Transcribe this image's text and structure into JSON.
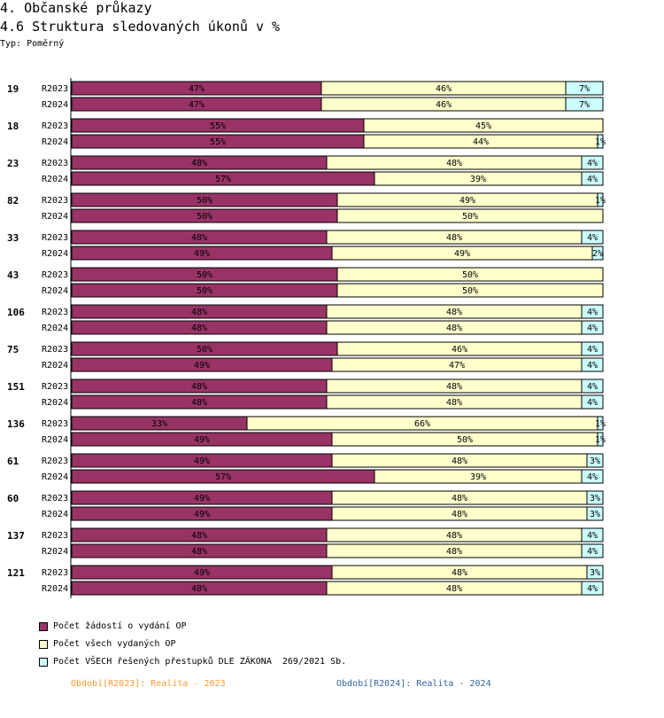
{
  "header": {
    "title": "4. Občanské průkazy",
    "subtitle": "4.6 Struktura sledovaných úkonů v %",
    "type_label": "Typ: Poměrný"
  },
  "chart_data": {
    "type": "bar",
    "orientation": "horizontal",
    "stacked": true,
    "title": "4.6 Struktura sledovaných úkonů v %",
    "xlim": [
      0,
      100
    ],
    "groups": [
      {
        "label": "19",
        "rows": [
          {
            "period": "R2023",
            "values": [
              47,
              46,
              7
            ]
          },
          {
            "period": "R2024",
            "values": [
              47,
              46,
              7
            ]
          }
        ]
      },
      {
        "label": "18",
        "rows": [
          {
            "period": "R2023",
            "values": [
              55,
              45,
              null
            ]
          },
          {
            "period": "R2024",
            "values": [
              55,
              44,
              1
            ]
          }
        ]
      },
      {
        "label": "23",
        "rows": [
          {
            "period": "R2023",
            "values": [
              48,
              48,
              4
            ]
          },
          {
            "period": "R2024",
            "values": [
              57,
              39,
              4
            ]
          }
        ]
      },
      {
        "label": "82",
        "rows": [
          {
            "period": "R2023",
            "values": [
              50,
              49,
              1
            ]
          },
          {
            "period": "R2024",
            "values": [
              50,
              50,
              null
            ]
          }
        ]
      },
      {
        "label": "33",
        "rows": [
          {
            "period": "R2023",
            "values": [
              48,
              48,
              4
            ]
          },
          {
            "period": "R2024",
            "values": [
              49,
              49,
              2
            ]
          }
        ]
      },
      {
        "label": "43",
        "rows": [
          {
            "period": "R2023",
            "values": [
              50,
              50,
              null
            ]
          },
          {
            "period": "R2024",
            "values": [
              50,
              50,
              null
            ]
          }
        ]
      },
      {
        "label": "106",
        "rows": [
          {
            "period": "R2023",
            "values": [
              48,
              48,
              4
            ]
          },
          {
            "period": "R2024",
            "values": [
              48,
              48,
              4
            ]
          }
        ]
      },
      {
        "label": "75",
        "rows": [
          {
            "period": "R2023",
            "values": [
              50,
              46,
              4
            ]
          },
          {
            "period": "R2024",
            "values": [
              49,
              47,
              4
            ]
          }
        ]
      },
      {
        "label": "151",
        "rows": [
          {
            "period": "R2023",
            "values": [
              48,
              48,
              4
            ]
          },
          {
            "period": "R2024",
            "values": [
              48,
              48,
              4
            ]
          }
        ]
      },
      {
        "label": "136",
        "rows": [
          {
            "period": "R2023",
            "values": [
              33,
              66,
              1
            ]
          },
          {
            "period": "R2024",
            "values": [
              49,
              50,
              1
            ]
          }
        ]
      },
      {
        "label": "61",
        "rows": [
          {
            "period": "R2023",
            "values": [
              49,
              48,
              3
            ]
          },
          {
            "period": "R2024",
            "values": [
              57,
              39,
              4
            ]
          }
        ]
      },
      {
        "label": "60",
        "rows": [
          {
            "period": "R2023",
            "values": [
              49,
              48,
              3
            ]
          },
          {
            "period": "R2024",
            "values": [
              49,
              48,
              3
            ]
          }
        ]
      },
      {
        "label": "137",
        "rows": [
          {
            "period": "R2023",
            "values": [
              48,
              48,
              4
            ]
          },
          {
            "period": "R2024",
            "values": [
              48,
              48,
              4
            ]
          }
        ]
      },
      {
        "label": "121",
        "rows": [
          {
            "period": "R2023",
            "values": [
              49,
              48,
              3
            ]
          },
          {
            "period": "R2024",
            "values": [
              48,
              48,
              4
            ]
          }
        ]
      }
    ],
    "series": [
      {
        "name": "Počet žádostí o vydání OP",
        "color": "#993366"
      },
      {
        "name": "Počet všech vydaných OP",
        "color": "#ffffcc"
      },
      {
        "name": "Počet VŠECH řešených přestupků DLE ZÁKONA  269/2021 Sb.",
        "color": "#ccffff"
      }
    ],
    "value_suffix": "%"
  },
  "legend": {
    "items": [
      {
        "label": "Počet žádostí o vydání OP",
        "color": "#993366"
      },
      {
        "label": "Počet všech vydaných OP",
        "color": "#ffffcc"
      },
      {
        "label": "Počet VŠECH řešených přestupků DLE ZÁKONA  269/2021 Sb.",
        "color": "#ccffff"
      }
    ]
  },
  "footer": {
    "left": "Období[R2023]: Realita - 2023",
    "left_color": "#ff9933",
    "right": "Období[R2024]: Realita - 2024",
    "right_color": "#336699"
  }
}
